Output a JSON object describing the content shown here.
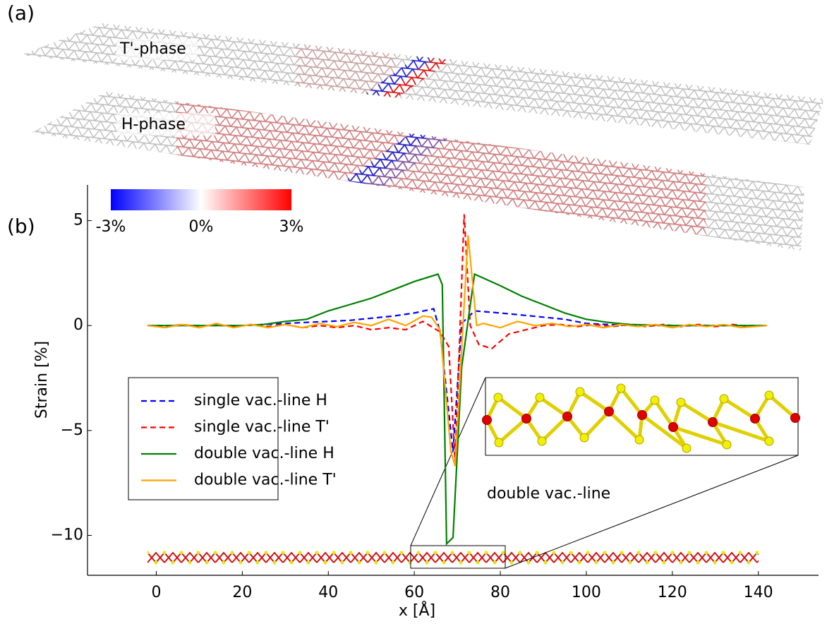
{
  "panel_a": {
    "label": "(a)",
    "sheets": [
      "T'-phase",
      "H-phase"
    ]
  },
  "chart_data": {
    "type": "line",
    "panel_label": "(b)",
    "y_label": "Strain [%]",
    "x_label": "x [Å]",
    "annotation": "double vac.-line",
    "xlim": [
      -16,
      154
    ],
    "ylim": [
      -11.9,
      6.7
    ],
    "xticks": [
      0,
      20,
      40,
      60,
      80,
      100,
      120,
      140
    ],
    "yticks": [
      {
        "value": -10,
        "label": "−10"
      },
      {
        "value": -5,
        "label": "−5"
      },
      0,
      5
    ],
    "legend": "center left",
    "colorbar": {
      "colors": [
        "#0000ff",
        "#ffffff",
        "#ff0000"
      ],
      "lim": [
        -3,
        3
      ],
      "ticks": [
        {
          "value": -3,
          "label": "-3%"
        },
        {
          "value": 0,
          "label": "0%"
        },
        {
          "value": 3,
          "label": "3%"
        }
      ]
    },
    "series": [
      {
        "name": "single vac.-line H",
        "color": "#0000ff",
        "style": "dashed",
        "x": [
          -2,
          5,
          10,
          15,
          20,
          25,
          30,
          35,
          40,
          45,
          50,
          55,
          60,
          64.5,
          66,
          69,
          71,
          74,
          80,
          85,
          90,
          95,
          100,
          105,
          110,
          120,
          130,
          142
        ],
        "values": [
          0,
          0,
          0,
          0,
          0,
          0.05,
          0.1,
          0.15,
          0.2,
          0.25,
          0.35,
          0.45,
          0.6,
          0.8,
          -0.3,
          -6.0,
          0.1,
          0.7,
          0.6,
          0.5,
          0.4,
          0.3,
          0.1,
          0.05,
          0,
          0,
          0,
          0
        ]
      },
      {
        "name": "single vac.-line T'",
        "color": "#ff0000",
        "style": "dashed",
        "x": [
          -2,
          2,
          6,
          10,
          14,
          18,
          22,
          26,
          30,
          34,
          38,
          42,
          46,
          50,
          54,
          58,
          62,
          66,
          68,
          69.5,
          71.6,
          73,
          75,
          78,
          82,
          86,
          90,
          94,
          98,
          102,
          106,
          110,
          114,
          118,
          122,
          126,
          130,
          134,
          138,
          142
        ],
        "values": [
          0,
          -0.05,
          0.05,
          -0.05,
          0.05,
          -0.05,
          0.05,
          -0.05,
          0.05,
          -0.1,
          0,
          -0.1,
          0,
          -0.2,
          -0.1,
          -0.2,
          0.2,
          -0.3,
          -1.0,
          -6.5,
          5.3,
          0,
          -0.9,
          -1.1,
          -0.4,
          -0.2,
          0,
          0.05,
          -0.05,
          0.05,
          -0.05,
          0.05,
          -0.05,
          0.05,
          -0.05,
          0.05,
          -0.05,
          0.05,
          -0.05,
          0
        ]
      },
      {
        "name": "double vac.-line H",
        "color": "#008000",
        "style": "solid",
        "x": [
          -2,
          10,
          20,
          25,
          30,
          35,
          40,
          45,
          50,
          55,
          60,
          65.5,
          66.5,
          67.5,
          69,
          71,
          74,
          80,
          85,
          90,
          95,
          100,
          105,
          110,
          120,
          130,
          142
        ],
        "values": [
          0,
          0,
          0,
          0.05,
          0.2,
          0.3,
          0.7,
          1.0,
          1.3,
          1.7,
          2.1,
          2.45,
          1.95,
          -10.4,
          -10.1,
          -2,
          2.45,
          1.9,
          1.4,
          1.0,
          0.6,
          0.3,
          0.15,
          0.05,
          0,
          0,
          0
        ]
      },
      {
        "name": "double vac.-line T'",
        "color": "#ffa500",
        "style": "solid",
        "x": [
          -2,
          2,
          6,
          10,
          14,
          18,
          22,
          26,
          30,
          34,
          38,
          42,
          46,
          50,
          54,
          58,
          62,
          64,
          66,
          68.5,
          69.5,
          72.5,
          74.5,
          76,
          80,
          84,
          88,
          92,
          96,
          100,
          104,
          108,
          112,
          116,
          120,
          124,
          128,
          132,
          136,
          142
        ],
        "values": [
          0,
          -0.1,
          0.05,
          -0.1,
          0.1,
          -0.1,
          0.05,
          -0.1,
          0.05,
          -0.1,
          0.1,
          -0.05,
          0.15,
          0,
          0.3,
          0,
          0.45,
          0.4,
          -0.2,
          -6.0,
          -6.7,
          4.3,
          0,
          0.1,
          -0.1,
          0.2,
          0,
          0.1,
          -0.05,
          0.05,
          -0.1,
          0.05,
          -0.05,
          0.05,
          -0.1,
          0.05,
          -0.05,
          0.05,
          -0.1,
          0
        ]
      }
    ]
  }
}
